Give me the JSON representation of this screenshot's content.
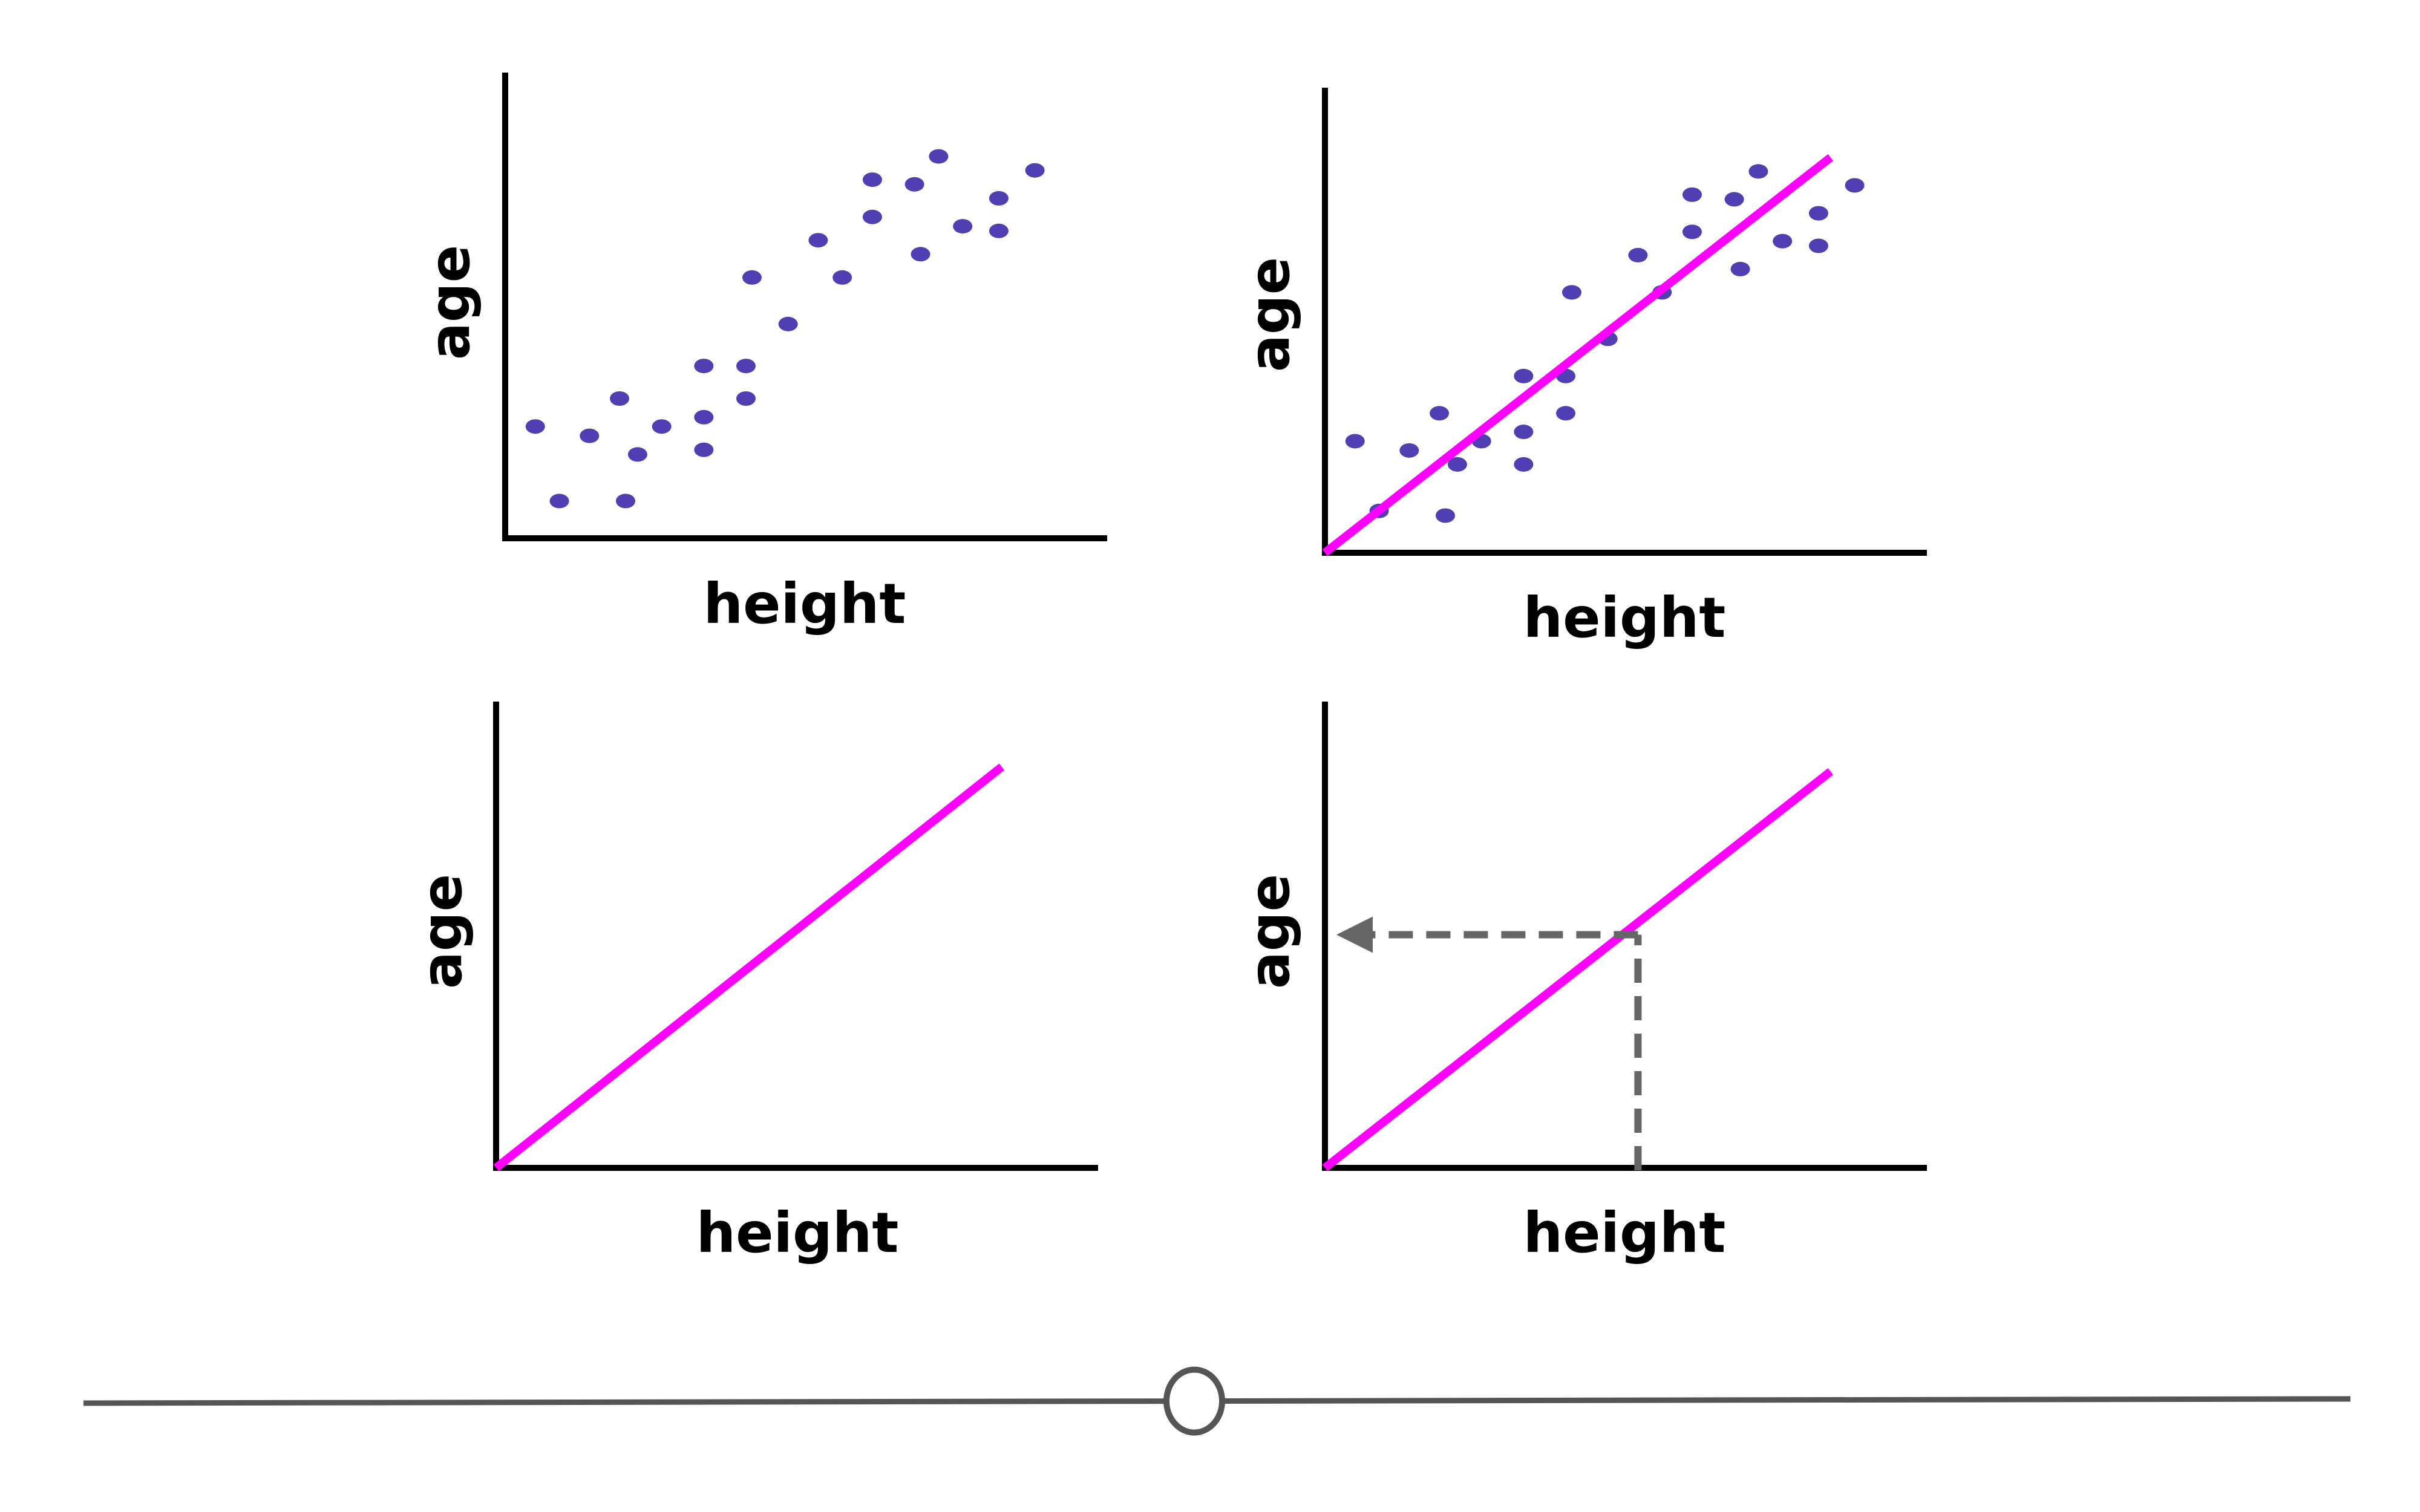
{
  "colors": {
    "axis": "#000000",
    "points": "#4f3fb3",
    "fit_line": "#ff00ff",
    "guide": "#666666",
    "timeline": "#555555",
    "timeline_knob_fill": "#ffffff"
  },
  "chart_data": [
    {
      "type": "scatter",
      "xlabel": "height",
      "ylabel": "age",
      "title": "",
      "xlim": [
        0,
        100
      ],
      "ylim": [
        0,
        100
      ],
      "grid": false,
      "points": [
        {
          "x": 5,
          "y": 24
        },
        {
          "x": 9,
          "y": 8
        },
        {
          "x": 14,
          "y": 22
        },
        {
          "x": 19,
          "y": 30
        },
        {
          "x": 20,
          "y": 8
        },
        {
          "x": 22,
          "y": 18
        },
        {
          "x": 26,
          "y": 24
        },
        {
          "x": 33,
          "y": 37
        },
        {
          "x": 33,
          "y": 26
        },
        {
          "x": 33,
          "y": 19
        },
        {
          "x": 40,
          "y": 37
        },
        {
          "x": 40,
          "y": 30
        },
        {
          "x": 41,
          "y": 56
        },
        {
          "x": 47,
          "y": 46
        },
        {
          "x": 52,
          "y": 64
        },
        {
          "x": 56,
          "y": 56
        },
        {
          "x": 61,
          "y": 77
        },
        {
          "x": 61,
          "y": 69
        },
        {
          "x": 68,
          "y": 76
        },
        {
          "x": 69,
          "y": 61
        },
        {
          "x": 72,
          "y": 82
        },
        {
          "x": 76,
          "y": 67
        },
        {
          "x": 82,
          "y": 73
        },
        {
          "x": 82,
          "y": 66
        },
        {
          "x": 88,
          "y": 79
        }
      ]
    },
    {
      "type": "scatter",
      "xlabel": "height",
      "ylabel": "age",
      "title": "",
      "xlim": [
        0,
        100
      ],
      "ylim": [
        0,
        100
      ],
      "grid": false,
      "points": [
        {
          "x": 5,
          "y": 24
        },
        {
          "x": 9,
          "y": 9
        },
        {
          "x": 14,
          "y": 22
        },
        {
          "x": 19,
          "y": 30
        },
        {
          "x": 20,
          "y": 8
        },
        {
          "x": 22,
          "y": 19
        },
        {
          "x": 26,
          "y": 24
        },
        {
          "x": 33,
          "y": 38
        },
        {
          "x": 33,
          "y": 26
        },
        {
          "x": 33,
          "y": 19
        },
        {
          "x": 40,
          "y": 38
        },
        {
          "x": 40,
          "y": 30
        },
        {
          "x": 41,
          "y": 56
        },
        {
          "x": 47,
          "y": 46
        },
        {
          "x": 52,
          "y": 64
        },
        {
          "x": 56,
          "y": 56
        },
        {
          "x": 61,
          "y": 77
        },
        {
          "x": 61,
          "y": 69
        },
        {
          "x": 68,
          "y": 76
        },
        {
          "x": 69,
          "y": 61
        },
        {
          "x": 72,
          "y": 82
        },
        {
          "x": 76,
          "y": 67
        },
        {
          "x": 82,
          "y": 73
        },
        {
          "x": 82,
          "y": 66
        },
        {
          "x": 88,
          "y": 79
        }
      ],
      "fit_line": {
        "x1": 0,
        "y1": 0,
        "x2": 84,
        "y2": 85
      }
    },
    {
      "type": "line",
      "xlabel": "height",
      "ylabel": "age",
      "title": "",
      "xlim": [
        0,
        100
      ],
      "ylim": [
        0,
        100
      ],
      "grid": false,
      "fit_line": {
        "x1": 0,
        "y1": 0,
        "x2": 84,
        "y2": 86
      }
    },
    {
      "type": "line",
      "xlabel": "height",
      "ylabel": "age",
      "title": "",
      "xlim": [
        0,
        100
      ],
      "ylim": [
        0,
        100
      ],
      "grid": false,
      "fit_line": {
        "x1": 0,
        "y1": 0,
        "x2": 84,
        "y2": 85
      },
      "guide": {
        "x": 52,
        "y": 50
      }
    }
  ],
  "timeline": {
    "position": 0.49
  }
}
